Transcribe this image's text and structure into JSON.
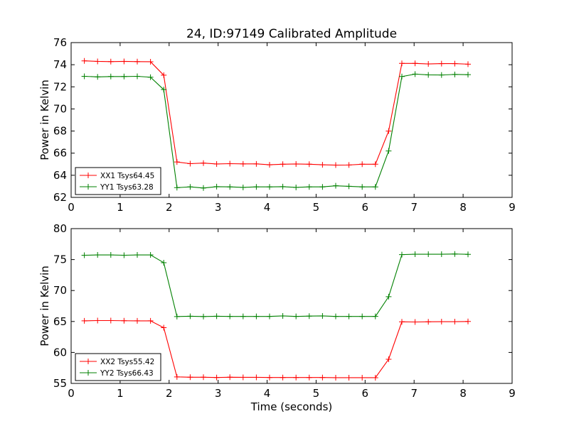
{
  "title": "24, ID:97149 Calibrated Amplitude",
  "chart_data": [
    {
      "type": "line",
      "title": "24, ID:97149 Calibrated Amplitude",
      "xlabel": "",
      "ylabel": "Power in Kelvin",
      "xlim": [
        0,
        9
      ],
      "ylim": [
        62,
        76
      ],
      "xticks": [
        "0",
        "1",
        "2",
        "3",
        "4",
        "5",
        "6",
        "7",
        "8",
        "9"
      ],
      "yticks": [
        "62",
        "64",
        "66",
        "68",
        "70",
        "72",
        "74",
        "76"
      ],
      "legend_position": "bottom-left",
      "x": [
        0.27,
        0.54,
        0.81,
        1.08,
        1.35,
        1.62,
        1.89,
        2.16,
        2.43,
        2.7,
        2.97,
        3.24,
        3.51,
        3.78,
        4.05,
        4.32,
        4.59,
        4.86,
        5.13,
        5.4,
        5.67,
        5.94,
        6.21,
        6.48,
        6.75,
        7.02,
        7.29,
        7.56,
        7.83,
        8.1
      ],
      "series": [
        {
          "name": "XX1 Tsys64.45",
          "color": "#ff0000",
          "values": [
            74.35,
            74.3,
            74.28,
            74.3,
            74.28,
            74.27,
            73.05,
            65.2,
            65.05,
            65.1,
            65.02,
            65.05,
            65.03,
            65.03,
            64.95,
            65.0,
            65.02,
            65.0,
            64.95,
            64.92,
            64.93,
            65.0,
            65.0,
            68.0,
            74.12,
            74.12,
            74.07,
            74.1,
            74.1,
            74.05
          ]
        },
        {
          "name": "YY1 Tsys63.28",
          "color": "#008000",
          "values": [
            72.95,
            72.9,
            72.93,
            72.93,
            72.95,
            72.87,
            71.75,
            62.88,
            62.95,
            62.85,
            62.97,
            62.95,
            62.9,
            62.95,
            62.95,
            62.97,
            62.9,
            62.95,
            62.95,
            63.05,
            63.0,
            62.95,
            62.95,
            66.2,
            72.93,
            73.15,
            73.08,
            73.07,
            73.12,
            73.1
          ]
        }
      ]
    },
    {
      "type": "line",
      "title": "",
      "xlabel": "Time (seconds)",
      "ylabel": "Power in Kelvin",
      "xlim": [
        0,
        9
      ],
      "ylim": [
        55,
        80
      ],
      "xticks": [
        "0",
        "1",
        "2",
        "3",
        "4",
        "5",
        "6",
        "7",
        "8",
        "9"
      ],
      "yticks": [
        "55",
        "60",
        "65",
        "70",
        "75",
        "80"
      ],
      "legend_position": "bottom-left",
      "x": [
        0.27,
        0.54,
        0.81,
        1.08,
        1.35,
        1.62,
        1.89,
        2.16,
        2.43,
        2.7,
        2.97,
        3.24,
        3.51,
        3.78,
        4.05,
        4.32,
        4.59,
        4.86,
        5.13,
        5.4,
        5.67,
        5.94,
        6.21,
        6.48,
        6.75,
        7.02,
        7.29,
        7.56,
        7.83,
        8.1
      ],
      "series": [
        {
          "name": "XX2 Tsys55.42",
          "color": "#ff0000",
          "values": [
            65.1,
            65.15,
            65.15,
            65.12,
            65.1,
            65.1,
            64.0,
            56.05,
            56.0,
            56.0,
            55.95,
            56.0,
            55.98,
            55.98,
            55.95,
            55.95,
            55.95,
            55.95,
            55.95,
            55.92,
            55.92,
            55.92,
            55.92,
            58.9,
            64.95,
            64.92,
            64.95,
            64.97,
            64.97,
            65.0
          ]
        },
        {
          "name": "YY2 Tsys66.43",
          "color": "#008000",
          "values": [
            75.7,
            75.75,
            75.75,
            75.7,
            75.75,
            75.75,
            74.5,
            65.8,
            65.85,
            65.8,
            65.85,
            65.82,
            65.82,
            65.82,
            65.82,
            65.9,
            65.82,
            65.87,
            65.9,
            65.82,
            65.82,
            65.82,
            65.82,
            69.0,
            75.8,
            75.87,
            75.87,
            75.87,
            75.9,
            75.85
          ]
        }
      ]
    }
  ]
}
